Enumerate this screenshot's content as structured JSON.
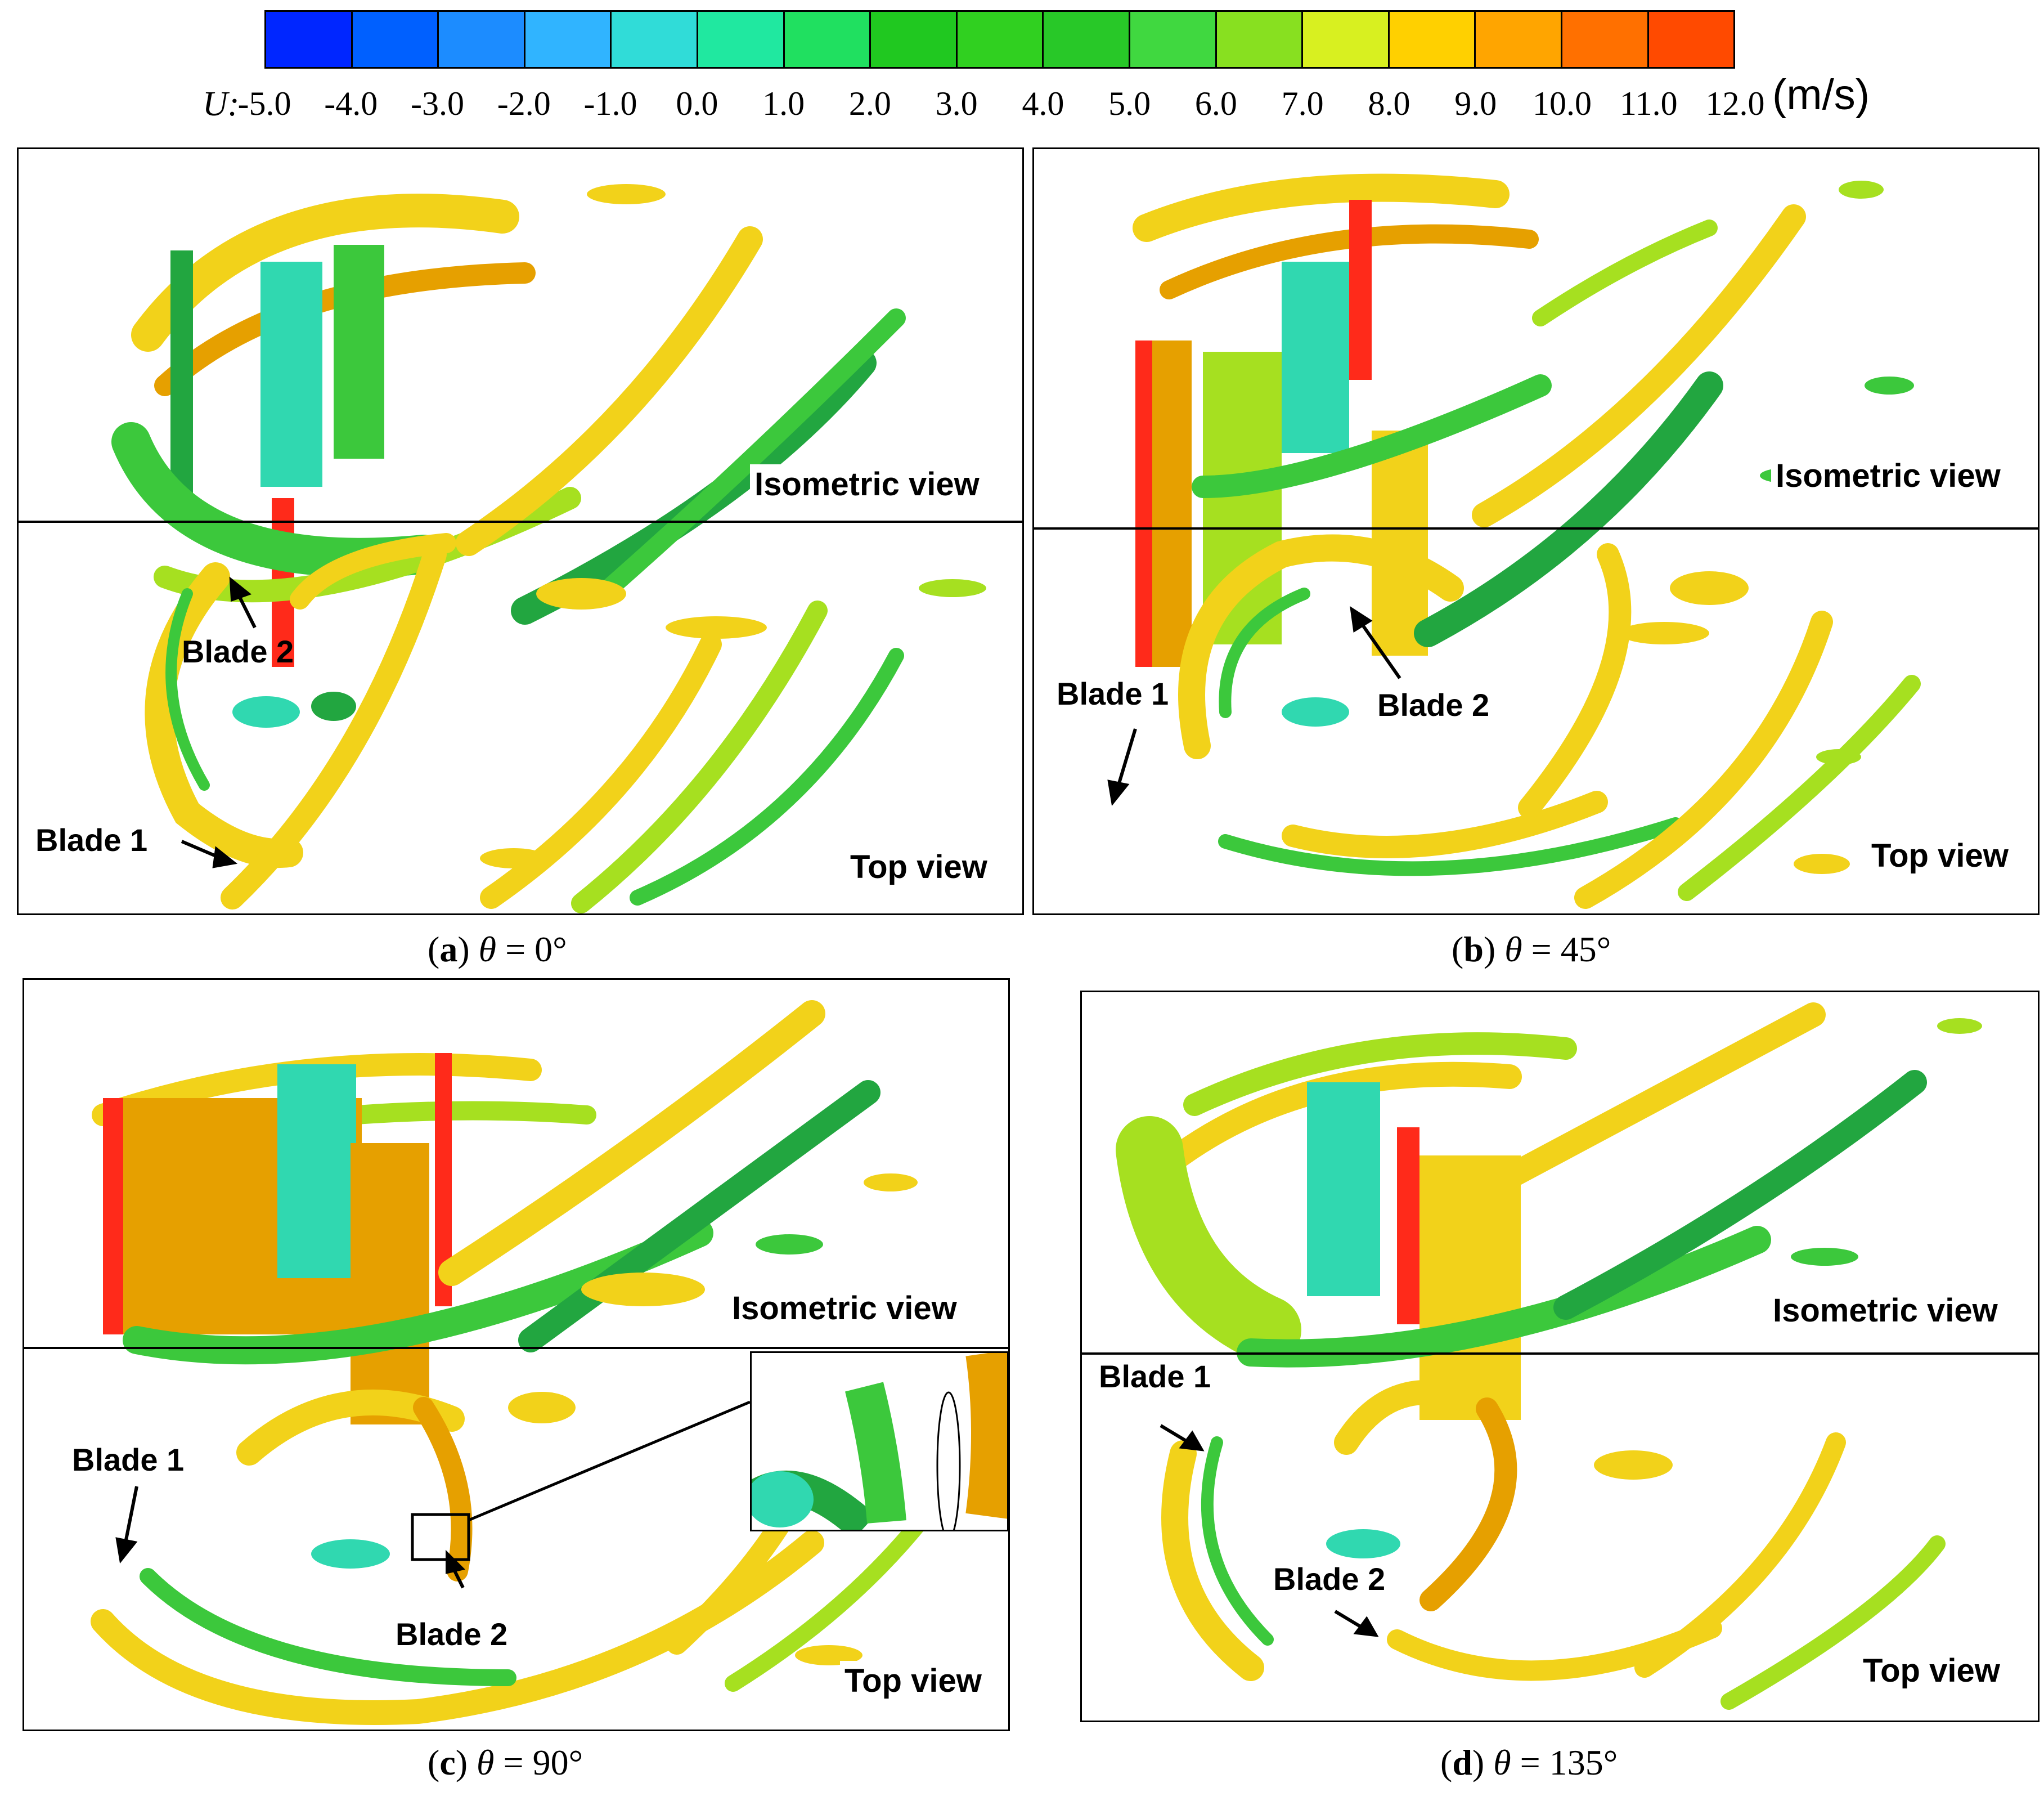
{
  "colorbar": {
    "variable": "U:",
    "unit": "(m/s)",
    "ticks": [
      "-5.0",
      "-4.0",
      "-3.0",
      "-2.0",
      "-1.0",
      "0.0",
      "1.0",
      "2.0",
      "3.0",
      "4.0",
      "5.0",
      "6.0",
      "7.0",
      "8.0",
      "9.0",
      "10.0",
      "11.0",
      "12.0"
    ],
    "colors": [
      "#0026ff",
      "#0060ff",
      "#1c8cff",
      "#30b4ff",
      "#30dcd8",
      "#20e8a0",
      "#20e060",
      "#20c820",
      "#30d020",
      "#28c828",
      "#40d840",
      "#88e020",
      "#d8f020",
      "#ffd000",
      "#ffa500",
      "#ff7000",
      "#ff4a00"
    ]
  },
  "surface_colors": {
    "yellow": "#f2d21a",
    "light_green": "#a6e020",
    "green": "#3cc83c",
    "dark_green": "#22a640",
    "orange": "#e6a000",
    "red": "#ff2a1a",
    "cyan": "#30d8b0"
  },
  "panels": {
    "a": {
      "iso_label": "Isometric view",
      "top_label": "Top view",
      "blade1": "Blade 1",
      "blade2": "Blade 2",
      "caption_letter": "a",
      "caption_theta": "θ",
      "caption_value": "= 0°"
    },
    "b": {
      "iso_label": "Isometric view",
      "top_label": "Top view",
      "blade1": "Blade 1",
      "blade2": "Blade 2",
      "caption_letter": "b",
      "caption_theta": "θ",
      "caption_value": "= 45°"
    },
    "c": {
      "iso_label": "Isometric view",
      "top_label": "Top view",
      "blade1": "Blade 1",
      "blade2": "Blade 2",
      "caption_letter": "c",
      "caption_theta": "θ",
      "caption_value": "= 90°"
    },
    "d": {
      "iso_label": "Isometric view",
      "top_label": "Top view",
      "blade1": "Blade 1",
      "blade2": "Blade 2",
      "caption_letter": "d",
      "caption_theta": "θ",
      "caption_value": "= 135°"
    }
  }
}
